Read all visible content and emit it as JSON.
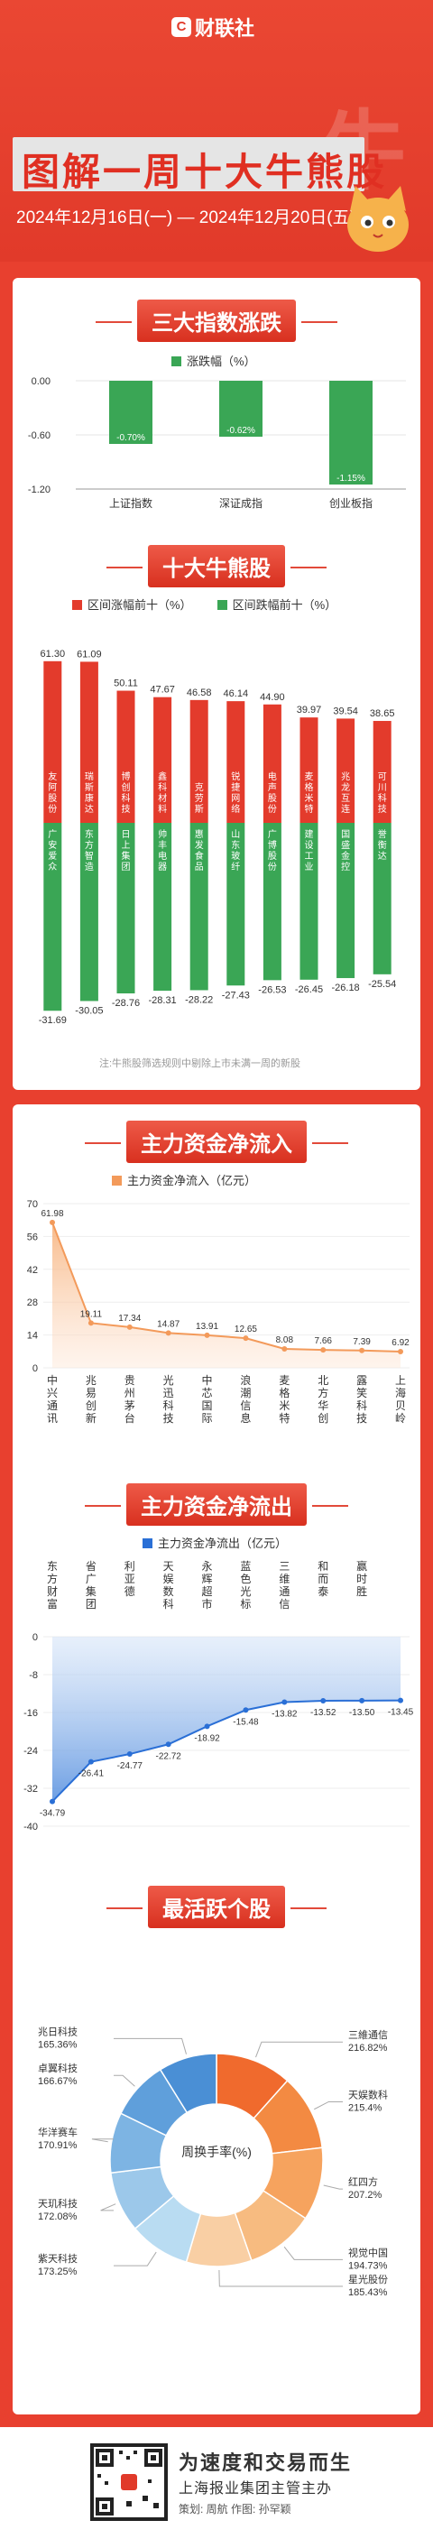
{
  "header": {
    "brand": "财联社",
    "title": "图解一周十大牛熊股",
    "date_range": "2024年12月16日(一) — 2024年12月20日(五)"
  },
  "colors": {
    "red": "#e33b2c",
    "green": "#3aa655",
    "orange": "#f39a5a",
    "blue": "#2a6fd6"
  },
  "sections": {
    "index": "三大指数涨跌",
    "bullbear": "十大牛熊股",
    "inflow": "主力资金净流入",
    "outflow": "主力资金净流出",
    "active": "最活跃个股"
  },
  "note": "注:牛熊股筛选规则中剔除上市未满一周的新股",
  "footer": {
    "slogan": "为速度和交易而生",
    "org": "上海报业集团主管主办",
    "credits": "策划: 周航    作图: 孙罕颖"
  },
  "chart_data": [
    {
      "type": "bar",
      "title": "三大指数涨跌",
      "series": [
        {
          "name": "涨跌幅（%）",
          "values": [
            -0.7,
            -0.62,
            -1.15
          ]
        }
      ],
      "categories": [
        "上证指数",
        "深证成指",
        "创业板指"
      ],
      "value_labels": [
        "-0.70%",
        "-0.62%",
        "-1.15%"
      ],
      "yticks": [
        "0.00",
        "-0.60",
        "-1.20"
      ],
      "ylim": [
        -1.2,
        0
      ]
    },
    {
      "type": "bar",
      "title": "十大牛熊股",
      "series": [
        {
          "name": "区间涨幅前十（%）",
          "values": [
            61.3,
            61.09,
            50.11,
            47.67,
            46.58,
            46.14,
            44.9,
            39.97,
            39.54,
            38.65
          ],
          "stocks": [
            "友阿股份",
            "瑞斯康达",
            "博创科技",
            "鑫科材料",
            "克劳斯",
            "锐捷网络",
            "电声股份",
            "麦格米特",
            "兆龙互连",
            "可川科技"
          ]
        },
        {
          "name": "区间跌幅前十（%）",
          "values": [
            -31.69,
            -30.05,
            -28.76,
            -28.31,
            -28.22,
            -27.43,
            -26.53,
            -26.45,
            -26.18,
            -25.54
          ],
          "stocks": [
            "广安爱众",
            "东方智造",
            "日上集团",
            "帅丰电器",
            "惠发食品",
            "山东玻纤",
            "广博股份",
            "建设工业",
            "国盛金控",
            "誉衡达"
          ]
        }
      ]
    },
    {
      "type": "area",
      "title": "主力资金净流入",
      "series": [
        {
          "name": "主力资金净流入（亿元）",
          "values": [
            61.98,
            19.11,
            17.34,
            14.87,
            13.91,
            12.65,
            8.08,
            7.66,
            7.39,
            6.92
          ]
        }
      ],
      "categories": [
        "中兴通讯",
        "兆易创新",
        "贵州茅台",
        "光迅科技",
        "中芯国际",
        "浪潮信息",
        "麦格米特",
        "北方华创",
        "露笑科技",
        "上海贝岭"
      ],
      "yticks": [
        70,
        56,
        42,
        28,
        14,
        0
      ],
      "ylim": [
        0,
        70
      ]
    },
    {
      "type": "area",
      "title": "主力资金净流出",
      "series": [
        {
          "name": "主力资金净流出（亿元）",
          "values": [
            -34.79,
            -26.41,
            -24.77,
            -22.72,
            -18.92,
            -15.48,
            -13.82,
            -13.52,
            -13.5,
            -13.45
          ]
        }
      ],
      "categories": [
        "东方财富",
        "省广集团",
        "利亚德",
        "天娱数科",
        "永辉超市",
        "蓝色光标",
        "三维通信",
        "和而泰",
        "赢时胜",
        ""
      ],
      "yticks": [
        0,
        -8,
        -16,
        -24,
        -32,
        -40
      ],
      "ylim": [
        -40,
        0
      ]
    },
    {
      "type": "pie",
      "title": "最活跃个股",
      "center_label": "周换手率(%)",
      "slices": [
        {
          "name": "三維通信",
          "value": 216.82,
          "label": "216.82%"
        },
        {
          "name": "天娱数科",
          "value": 215.4,
          "label": "215.4%"
        },
        {
          "name": "红四方",
          "value": 207.2,
          "label": "207.2%"
        },
        {
          "name": "视觉中国",
          "value": 194.73,
          "label": "194.73%"
        },
        {
          "name": "星光股份",
          "value": 185.43,
          "label": "185.43%"
        },
        {
          "name": "紫天科技",
          "value": 173.25,
          "label": "173.25%"
        },
        {
          "name": "天玑科技",
          "value": 172.08,
          "label": "172.08%"
        },
        {
          "name": "华洋赛车",
          "value": 170.91,
          "label": "170.91%"
        },
        {
          "name": "卓翼科技",
          "value": 166.67,
          "label": "166.67%"
        },
        {
          "name": "兆日科技",
          "value": 165.36,
          "label": "165.36%"
        }
      ]
    }
  ]
}
